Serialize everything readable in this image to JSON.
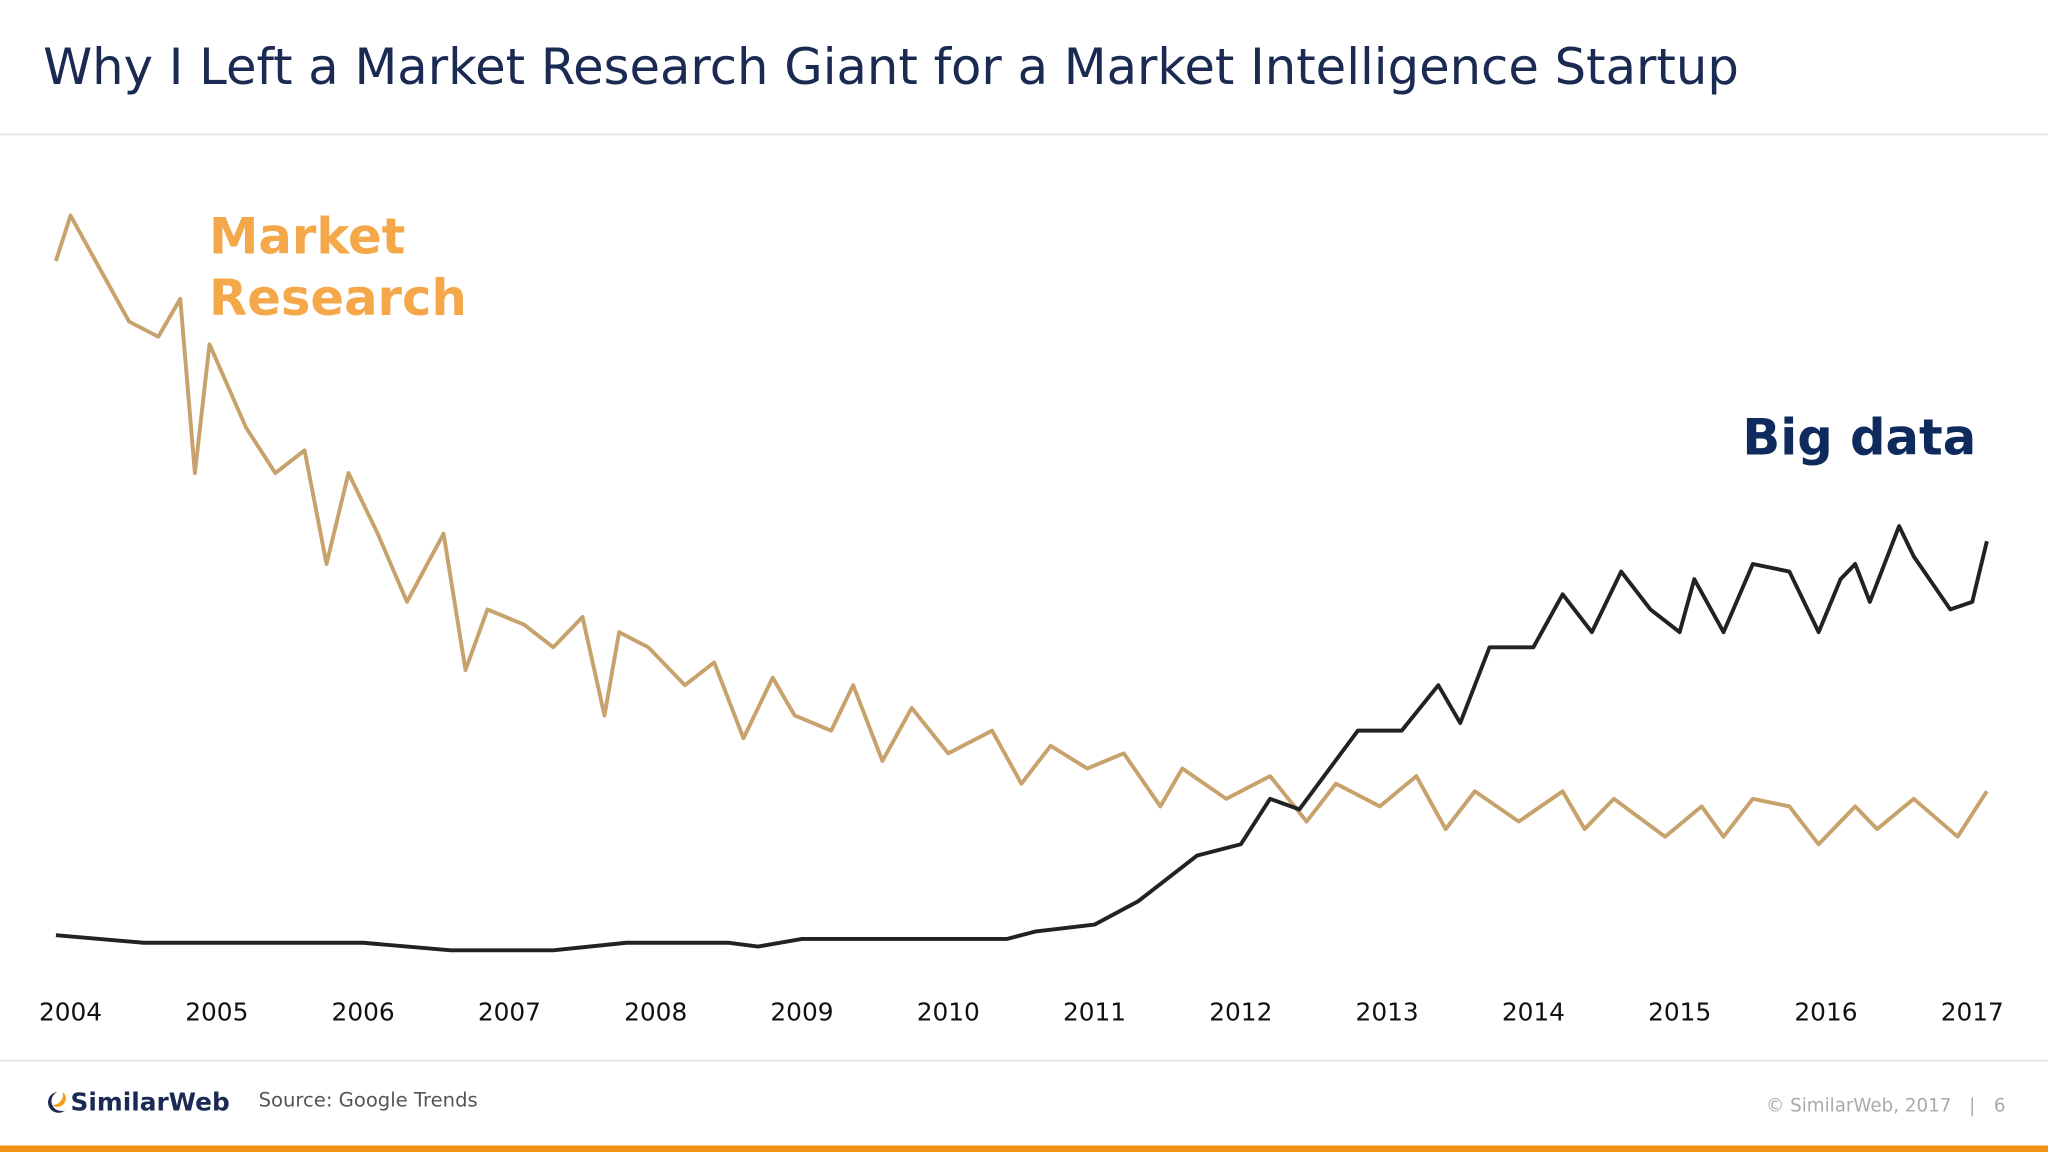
{
  "title": "Why I Left a Market Research Giant for a Market Intelligence Startup",
  "chart_data": {
    "type": "line",
    "xlim": [
      2004,
      2017
    ],
    "xticks": [
      2004,
      2005,
      2006,
      2007,
      2008,
      2009,
      2010,
      2011,
      2012,
      2013,
      2014,
      2015,
      2016,
      2017
    ],
    "ylim": [
      0,
      100
    ],
    "series": [
      {
        "name": "Market Research",
        "color": "#c8a26c",
        "label_color": "#f5a84a",
        "x": [
          2003.9,
          2004.0,
          2004.4,
          2004.6,
          2004.75,
          2004.85,
          2004.95,
          2005.2,
          2005.4,
          2005.6,
          2005.75,
          2005.9,
          2006.1,
          2006.3,
          2006.55,
          2006.7,
          2006.85,
          2007.1,
          2007.3,
          2007.5,
          2007.65,
          2007.75,
          2007.95,
          2008.2,
          2008.4,
          2008.6,
          2008.8,
          2008.95,
          2009.2,
          2009.35,
          2009.55,
          2009.75,
          2010.0,
          2010.3,
          2010.5,
          2010.7,
          2010.95,
          2011.2,
          2011.45,
          2011.6,
          2011.9,
          2012.2,
          2012.45,
          2012.65,
          2012.95,
          2013.2,
          2013.4,
          2013.6,
          2013.9,
          2014.2,
          2014.35,
          2014.55,
          2014.9,
          2015.15,
          2015.3,
          2015.5,
          2015.75,
          2015.95,
          2016.2,
          2016.35,
          2016.6,
          2016.9,
          2017.1
        ],
        "values": [
          94,
          100,
          86,
          84,
          89,
          66,
          83,
          72,
          66,
          69,
          54,
          66,
          58,
          49,
          58,
          40,
          48,
          46,
          43,
          47,
          34,
          45,
          43,
          38,
          41,
          31,
          39,
          34,
          32,
          38,
          28,
          35,
          29,
          32,
          25,
          30,
          27,
          29,
          22,
          27,
          23,
          26,
          20,
          25,
          22,
          26,
          19,
          24,
          20,
          24,
          19,
          23,
          18,
          22,
          18,
          23,
          22,
          17,
          22,
          19,
          23,
          18,
          24
        ]
      },
      {
        "name": "Big data",
        "color": "#222222",
        "label_color": "#0f2a5c",
        "x": [
          2003.9,
          2004.5,
          2005.0,
          2006.0,
          2006.6,
          2007.3,
          2007.8,
          2008.5,
          2008.7,
          2009.0,
          2010.4,
          2010.6,
          2011.0,
          2011.3,
          2011.7,
          2012.0,
          2012.2,
          2012.4,
          2012.8,
          2013.1,
          2013.35,
          2013.5,
          2013.7,
          2014.0,
          2014.2,
          2014.4,
          2014.6,
          2014.8,
          2015.0,
          2015.1,
          2015.3,
          2015.5,
          2015.75,
          2015.95,
          2016.1,
          2016.2,
          2016.3,
          2016.5,
          2016.6,
          2016.85,
          2017.0,
          2017.1
        ],
        "values": [
          5,
          4,
          4,
          4,
          3,
          3,
          4,
          4,
          3.5,
          4.5,
          4.5,
          5.5,
          6.4,
          9.5,
          15.5,
          17,
          23,
          21.6,
          32,
          32,
          38,
          33,
          43,
          43,
          50,
          45,
          53,
          48,
          45,
          52,
          45,
          54,
          53,
          45,
          52,
          54,
          49,
          59,
          55,
          48,
          49,
          57
        ]
      }
    ]
  },
  "footer": {
    "logo": "SimilarWeb",
    "source": "Source: Google Trends",
    "copyright": "© SimilarWeb, 2017",
    "separator": "|",
    "page": "6"
  }
}
